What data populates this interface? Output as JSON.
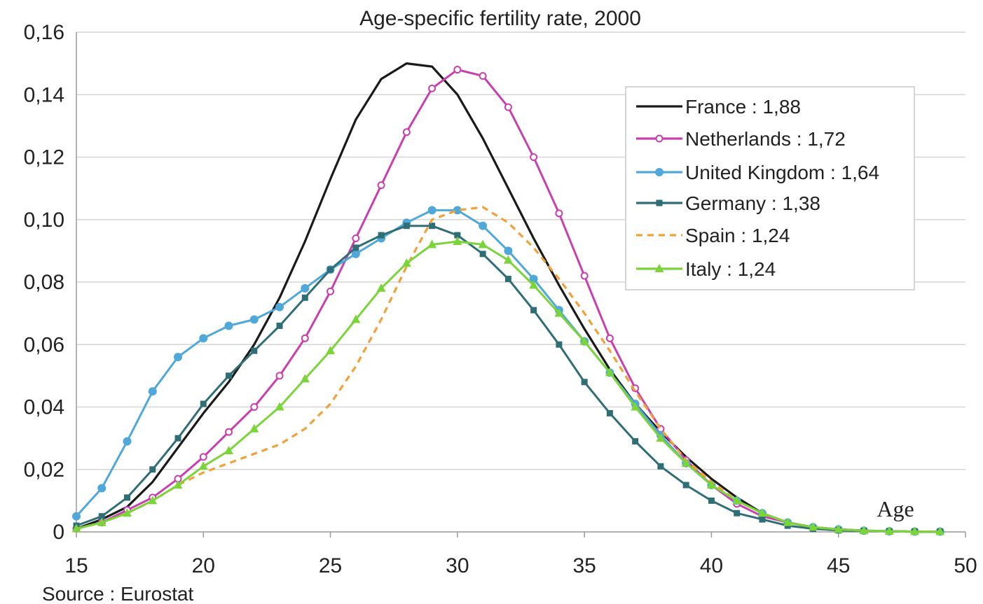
{
  "chart_data": {
    "type": "line",
    "title": "Age-specific fertility rate, 2000",
    "xlabel": "Age",
    "ylabel": "",
    "source": "Source : Eurostat",
    "xlim": [
      15,
      50
    ],
    "ylim": [
      0,
      0.16
    ],
    "x_ticks": [
      15,
      20,
      25,
      30,
      35,
      40,
      45,
      50
    ],
    "x_tick_labels": [
      "15",
      "20",
      "25",
      "30",
      "35",
      "40",
      "45",
      "50"
    ],
    "y_ticks": [
      0,
      0.02,
      0.04,
      0.06,
      0.08,
      0.1,
      0.12,
      0.14,
      0.16
    ],
    "y_tick_labels": [
      "0",
      "0,02",
      "0,04",
      "0,06",
      "0,08",
      "0,10",
      "0,12",
      "0,14",
      "0,16"
    ],
    "grid": "horizontal",
    "legend_position": "top-right",
    "x": [
      15,
      16,
      17,
      18,
      19,
      20,
      21,
      22,
      23,
      24,
      25,
      26,
      27,
      28,
      29,
      30,
      31,
      32,
      33,
      34,
      35,
      36,
      37,
      38,
      39,
      40,
      41,
      42,
      43,
      44,
      45,
      46,
      47,
      48,
      49
    ],
    "series": [
      {
        "name": "France : 1,88",
        "color": "#1a1a1a",
        "marker": "none",
        "dash": "solid",
        "values": [
          0.001,
          0.004,
          0.008,
          0.016,
          0.027,
          0.038,
          0.048,
          0.06,
          0.075,
          0.093,
          0.113,
          0.132,
          0.145,
          0.15,
          0.149,
          0.14,
          0.126,
          0.11,
          0.094,
          0.079,
          0.065,
          0.052,
          0.041,
          0.032,
          0.024,
          0.017,
          0.011,
          0.006,
          0.003,
          0.0015,
          0.0008,
          0.0004,
          0.0002,
          0.0001,
          0.0001
        ]
      },
      {
        "name": "Netherlands : 1,72",
        "color": "#c83fae",
        "marker": "open-circle",
        "dash": "solid",
        "values": [
          0.001,
          0.003,
          0.007,
          0.011,
          0.017,
          0.024,
          0.032,
          0.04,
          0.05,
          0.062,
          0.077,
          0.094,
          0.111,
          0.128,
          0.142,
          0.148,
          0.146,
          0.136,
          0.12,
          0.102,
          0.082,
          0.062,
          0.046,
          0.033,
          0.023,
          0.015,
          0.009,
          0.005,
          0.003,
          0.0015,
          0.0008,
          0.0004,
          0.0002,
          0.0001,
          0.0001
        ]
      },
      {
        "name": "United Kingdom : 1,64",
        "color": "#4fa8d8",
        "marker": "filled-circle",
        "dash": "solid",
        "values": [
          0.005,
          0.014,
          0.029,
          0.045,
          0.056,
          0.062,
          0.066,
          0.068,
          0.072,
          0.078,
          0.084,
          0.089,
          0.094,
          0.099,
          0.103,
          0.103,
          0.098,
          0.09,
          0.081,
          0.071,
          0.061,
          0.051,
          0.041,
          0.031,
          0.022,
          0.015,
          0.01,
          0.006,
          0.003,
          0.0015,
          0.0008,
          0.0004,
          0.0002,
          0.0001,
          0.0001
        ]
      },
      {
        "name": "Germany : 1,38",
        "color": "#2f6e75",
        "marker": "square",
        "dash": "solid",
        "values": [
          0.002,
          0.005,
          0.011,
          0.02,
          0.03,
          0.041,
          0.05,
          0.058,
          0.066,
          0.075,
          0.084,
          0.091,
          0.095,
          0.098,
          0.098,
          0.095,
          0.089,
          0.081,
          0.071,
          0.06,
          0.048,
          0.038,
          0.029,
          0.021,
          0.015,
          0.01,
          0.006,
          0.004,
          0.002,
          0.001,
          0.0005,
          0.0003,
          0.0002,
          0.0001,
          0.0001
        ]
      },
      {
        "name": "Spain : 1,24",
        "color": "#f0a13a",
        "marker": "none",
        "dash": "dashed",
        "values": [
          0.001,
          0.003,
          0.006,
          0.01,
          0.015,
          0.019,
          0.022,
          0.025,
          0.028,
          0.033,
          0.041,
          0.053,
          0.068,
          0.085,
          0.1,
          0.103,
          0.104,
          0.099,
          0.091,
          0.081,
          0.07,
          0.058,
          0.045,
          0.033,
          0.023,
          0.016,
          0.01,
          0.006,
          0.003,
          0.0015,
          0.0008,
          0.0004,
          0.0002,
          0.0001,
          0.0001
        ]
      },
      {
        "name": "Italy : 1,24",
        "color": "#7ad43a",
        "marker": "triangle",
        "dash": "solid",
        "values": [
          0.001,
          0.003,
          0.006,
          0.01,
          0.015,
          0.021,
          0.026,
          0.033,
          0.04,
          0.049,
          0.058,
          0.068,
          0.078,
          0.086,
          0.092,
          0.093,
          0.092,
          0.087,
          0.079,
          0.07,
          0.061,
          0.051,
          0.04,
          0.03,
          0.022,
          0.015,
          0.01,
          0.006,
          0.003,
          0.0015,
          0.0008,
          0.0004,
          0.0002,
          0.0001,
          0.0001
        ]
      }
    ]
  }
}
